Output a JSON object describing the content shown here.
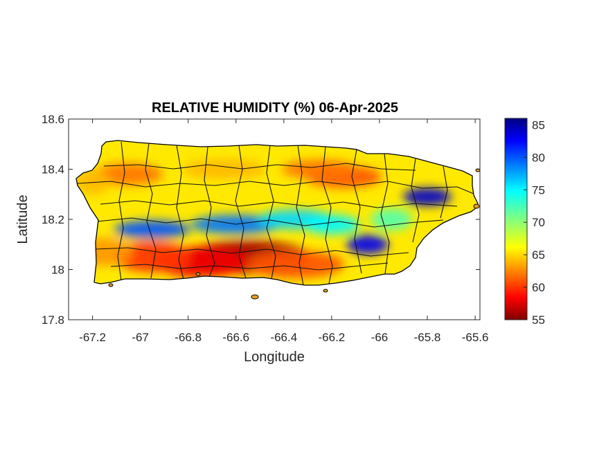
{
  "figure": {
    "title": "RELATIVE HUMIDITY (%) 06-Apr-2025",
    "xlabel": "Longitude",
    "ylabel": "Latitude"
  },
  "chart_data": {
    "type": "heatmap",
    "map_region": "Puerto Rico municipalities",
    "xlim": [
      -67.3,
      -65.58
    ],
    "ylim": [
      17.8,
      18.6
    ],
    "x_ticks": [
      "-67.2",
      "-67",
      "-66.8",
      "-66.6",
      "-66.4",
      "-66.2",
      "-66",
      "-65.8",
      "-65.6"
    ],
    "x_tick_values": [
      -67.2,
      -67.0,
      -66.8,
      -66.6,
      -66.4,
      -66.2,
      -66.0,
      -65.8,
      -65.6
    ],
    "y_ticks": [
      "17.8",
      "18",
      "18.2",
      "18.4",
      "18.6"
    ],
    "y_tick_values": [
      17.8,
      18.0,
      18.2,
      18.4,
      18.6
    ],
    "colorbar": {
      "min": 55,
      "max": 86,
      "ticks": [
        "55",
        "60",
        "65",
        "70",
        "75",
        "80",
        "85"
      ],
      "tick_values": [
        55,
        60,
        65,
        70,
        75,
        80,
        85
      ],
      "colormap": "jet"
    },
    "humidity_features": [
      {
        "lon": -66.55,
        "lat": 18.05,
        "value": 56
      },
      {
        "lon": -66.75,
        "lat": 18.03,
        "value": 58
      },
      {
        "lon": -66.95,
        "lat": 18.05,
        "value": 60
      },
      {
        "lon": -66.35,
        "lat": 18.02,
        "value": 61
      },
      {
        "lon": -67.15,
        "lat": 18.07,
        "value": 63
      },
      {
        "lon": -66.15,
        "lat": 18.37,
        "value": 61
      },
      {
        "lon": -66.25,
        "lat": 18.4,
        "value": 62
      },
      {
        "lon": -67.05,
        "lat": 18.38,
        "value": 62
      },
      {
        "lon": -66.65,
        "lat": 18.4,
        "value": 64
      },
      {
        "lon": -67.2,
        "lat": 18.35,
        "value": 64
      },
      {
        "lon": -65.8,
        "lat": 18.29,
        "value": 84
      },
      {
        "lon": -66.05,
        "lat": 18.1,
        "value": 83
      },
      {
        "lon": -66.95,
        "lat": 18.16,
        "value": 80
      },
      {
        "lon": -66.6,
        "lat": 18.18,
        "value": 79
      },
      {
        "lon": -66.35,
        "lat": 18.2,
        "value": 76
      },
      {
        "lon": -66.2,
        "lat": 18.18,
        "value": 75
      },
      {
        "lon": -65.95,
        "lat": 18.2,
        "value": 72
      }
    ]
  }
}
